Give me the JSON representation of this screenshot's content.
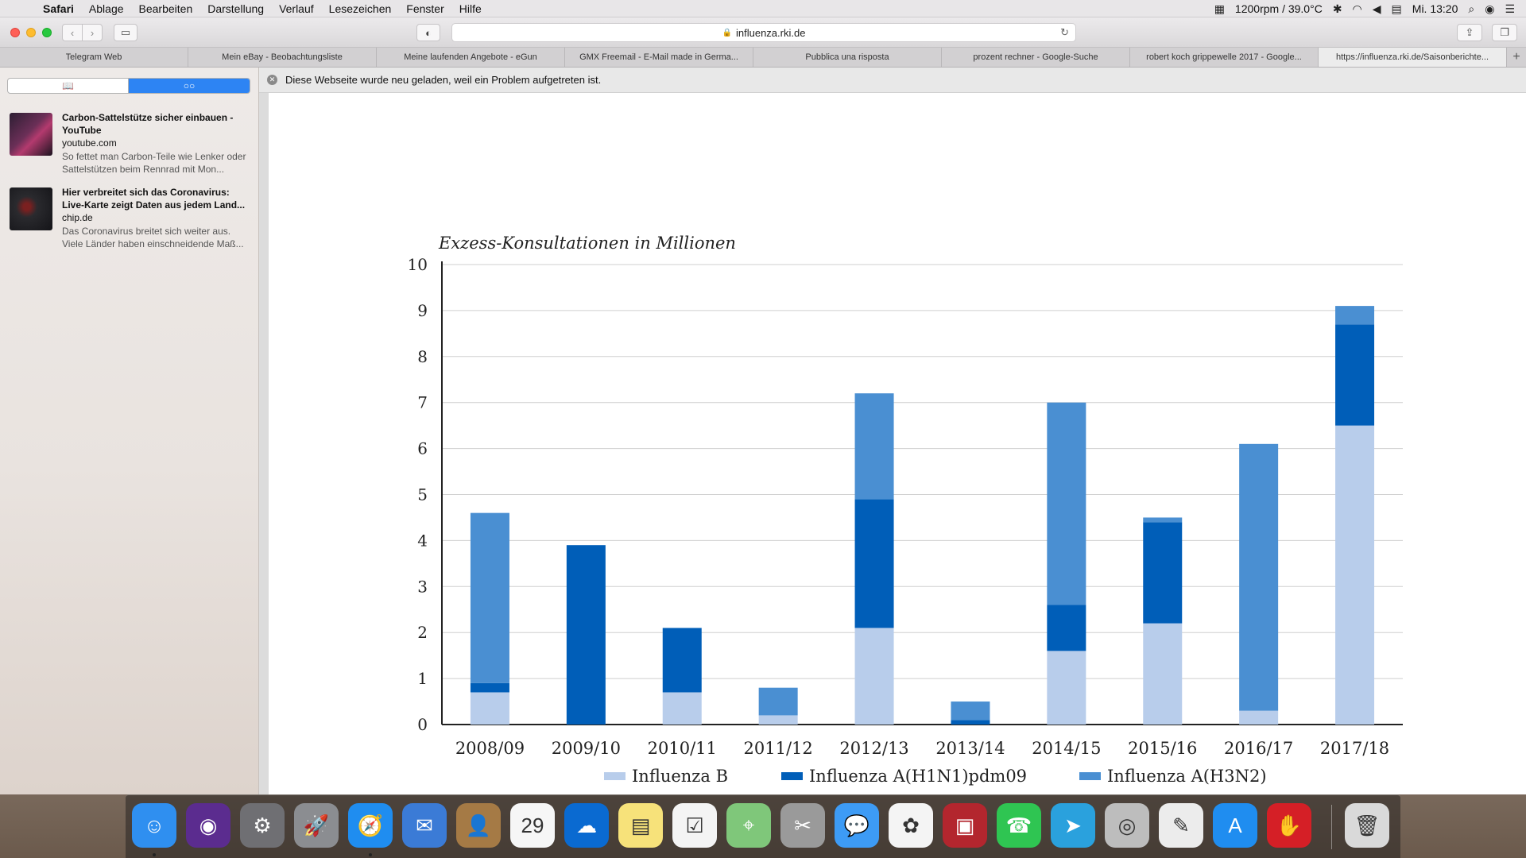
{
  "menubar": {
    "apple": "",
    "app": "Safari",
    "items": [
      "Ablage",
      "Bearbeiten",
      "Darstellung",
      "Verlauf",
      "Lesezeichen",
      "Fenster",
      "Hilfe"
    ],
    "status_text": "1200rpm / 39.0°C",
    "clock": "Mi. 13:20"
  },
  "toolbar": {
    "url": "influenza.rki.de",
    "back_icon": "‹",
    "forward_icon": "›",
    "sidebar_icon": "▭",
    "privacy_icon": "◐",
    "reload_icon": "↻",
    "share_icon": "⇪",
    "tabs_icon": "❐"
  },
  "tabs": [
    "Telegram Web",
    "Mein eBay - Beobachtungsliste",
    "Meine laufenden Angebote - eGun",
    "GMX Freemail - E-Mail made in Germa...",
    "Pubblica una risposta",
    "prozent rechner - Google-Suche",
    "robert koch grippewelle 2017 - Google...",
    "https://influenza.rki.de/Saisonberichte..."
  ],
  "sidebar": {
    "reading_list": [
      {
        "title": "Carbon-Sattelstütze sicher einbauen - YouTube",
        "domain": "youtube.com",
        "desc": "So fettet man Carbon-Teile wie Lenker oder Sattelstützen beim Rennrad mit Mon..."
      },
      {
        "title": "Hier verbreitet sich das Coronavirus: Live-Karte zeigt Daten aus jedem Land...",
        "domain": "chip.de",
        "desc": "Das Coronavirus breitet sich weiter aus. Viele Länder haben einschneidende Maß..."
      }
    ]
  },
  "banner": {
    "text": "Diese Webseite wurde neu geladen, weil ein Problem aufgetreten ist."
  },
  "chart_data": {
    "type": "bar",
    "stacked": true,
    "title": "Exzess-Konsultationen in Millionen",
    "categories": [
      "2008/09",
      "2009/10",
      "2010/11",
      "2011/12",
      "2012/13",
      "2013/14",
      "2014/15",
      "2015/16",
      "2016/17",
      "2017/18"
    ],
    "series": [
      {
        "name": "Influenza B",
        "color": "#b8cdeb",
        "values": [
          0.7,
          0,
          0.7,
          0.2,
          2.1,
          0,
          1.6,
          2.2,
          0.3,
          6.5
        ]
      },
      {
        "name": "Influenza A(H1N1)pdm09",
        "color": "#005eb8",
        "values": [
          0.2,
          3.9,
          1.4,
          0,
          2.8,
          0.1,
          1.0,
          2.2,
          0,
          2.2
        ]
      },
      {
        "name": "Influenza A(H3N2)",
        "color": "#4a8fd2",
        "values": [
          3.7,
          0,
          0,
          0.6,
          2.3,
          0.4,
          4.4,
          0.1,
          5.8,
          0.4
        ]
      }
    ],
    "ylim": [
      0,
      10
    ],
    "yticks": [
      "0",
      "1",
      "2",
      "3",
      "4",
      "5",
      "6",
      "7",
      "8",
      "9",
      "10"
    ],
    "grid": true,
    "legend_position": "bottom"
  },
  "dock": {
    "apps": [
      {
        "name": "finder-icon",
        "glyph": "☺",
        "color": "#2f8ff0",
        "running": true
      },
      {
        "name": "siri-icon",
        "glyph": "◉",
        "color": "#5b2c8f",
        "running": false
      },
      {
        "name": "system-preferences-icon",
        "glyph": "⚙",
        "color": "#6f6f73",
        "running": false
      },
      {
        "name": "launchpad-icon",
        "glyph": "🚀",
        "color": "#8b8d91",
        "running": false
      },
      {
        "name": "safari-icon",
        "glyph": "🧭",
        "color": "#1f8df0",
        "running": true
      },
      {
        "name": "mail-icon",
        "glyph": "✉",
        "color": "#3b7bd6",
        "running": false
      },
      {
        "name": "contacts-icon",
        "glyph": "👤",
        "color": "#a57a45",
        "running": false
      },
      {
        "name": "calendar-icon",
        "glyph": "29",
        "color": "#f6f6f6",
        "running": false
      },
      {
        "name": "openoffice-icon",
        "glyph": "☁",
        "color": "#0a6ad1",
        "running": false
      },
      {
        "name": "notes-icon",
        "glyph": "▤",
        "color": "#f7e27a",
        "running": false
      },
      {
        "name": "reminders-icon",
        "glyph": "☑",
        "color": "#f4f4f4",
        "running": false
      },
      {
        "name": "maps-icon",
        "glyph": "⌖",
        "color": "#7fc77a",
        "running": false
      },
      {
        "name": "screenshot-icon",
        "glyph": "✂",
        "color": "#9a9a9a",
        "running": false
      },
      {
        "name": "messages-icon",
        "glyph": "💬",
        "color": "#3d9bf5",
        "running": false
      },
      {
        "name": "photos-icon",
        "glyph": "✿",
        "color": "#f4f4f4",
        "running": false
      },
      {
        "name": "photo-booth-icon",
        "glyph": "▣",
        "color": "#b3262e",
        "running": false
      },
      {
        "name": "facetime-icon",
        "glyph": "☎",
        "color": "#2fc552",
        "running": false
      },
      {
        "name": "telegram-icon",
        "glyph": "➤",
        "color": "#2aa1dd",
        "running": false
      },
      {
        "name": "dvd-player-icon",
        "glyph": "◎",
        "color": "#bdbdbd",
        "running": false
      },
      {
        "name": "textedit-icon",
        "glyph": "✎",
        "color": "#ececec",
        "running": false
      },
      {
        "name": "app-store-icon",
        "glyph": "A",
        "color": "#1f8df0",
        "running": false
      },
      {
        "name": "adblock-icon",
        "glyph": "✋",
        "color": "#d51f26",
        "running": false
      }
    ],
    "trash": {
      "name": "trash-icon",
      "glyph": "🗑",
      "color": "#d9d9d9"
    }
  }
}
